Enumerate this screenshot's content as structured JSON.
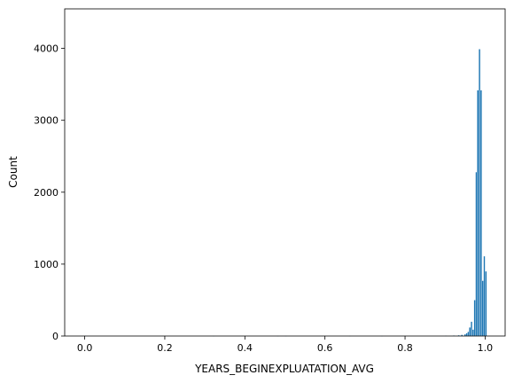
{
  "chart_data": {
    "type": "bar",
    "title": "",
    "xlabel": "YEARS_BEGINEXPLUATATION_AVG",
    "ylabel": "Count",
    "xlim": [
      -0.05,
      1.05
    ],
    "ylim": [
      0,
      4550
    ],
    "xticks": [
      0.0,
      0.2,
      0.4,
      0.6,
      0.8,
      1.0
    ],
    "xtick_labels": [
      "0.0",
      "0.2",
      "0.4",
      "0.6",
      "0.8",
      "1.0"
    ],
    "yticks": [
      0,
      1000,
      2000,
      3000,
      4000
    ],
    "ytick_labels": [
      "0",
      "1000",
      "2000",
      "3000",
      "4000"
    ],
    "grid": false,
    "bin_width": 0.004,
    "bar_color": "#1f77b4",
    "bins": [
      {
        "x": 0.0,
        "count": 4
      },
      {
        "x": 0.32,
        "count": 2
      },
      {
        "x": 0.48,
        "count": 2
      },
      {
        "x": 0.5,
        "count": 2
      },
      {
        "x": 0.66,
        "count": 2
      },
      {
        "x": 0.74,
        "count": 2
      },
      {
        "x": 0.9,
        "count": 5
      },
      {
        "x": 0.92,
        "count": 8
      },
      {
        "x": 0.932,
        "count": 12
      },
      {
        "x": 0.94,
        "count": 18
      },
      {
        "x": 0.948,
        "count": 25
      },
      {
        "x": 0.952,
        "count": 40
      },
      {
        "x": 0.956,
        "count": 60
      },
      {
        "x": 0.96,
        "count": 120
      },
      {
        "x": 0.964,
        "count": 200
      },
      {
        "x": 0.968,
        "count": 90
      },
      {
        "x": 0.972,
        "count": 500
      },
      {
        "x": 0.976,
        "count": 2280
      },
      {
        "x": 0.98,
        "count": 3420
      },
      {
        "x": 0.984,
        "count": 3990
      },
      {
        "x": 0.988,
        "count": 3420
      },
      {
        "x": 0.992,
        "count": 770
      },
      {
        "x": 0.996,
        "count": 1110
      },
      {
        "x": 1.0,
        "count": 900
      }
    ]
  }
}
